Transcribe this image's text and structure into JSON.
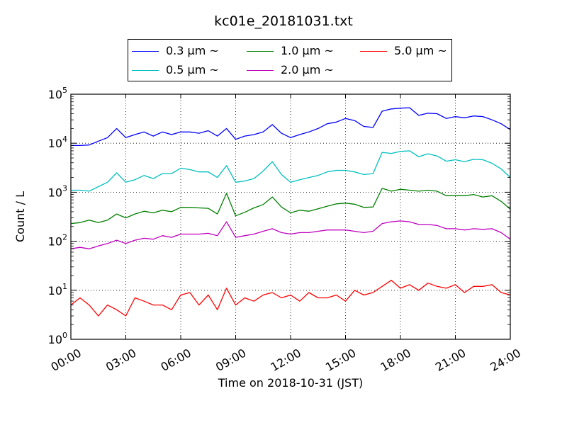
{
  "chart_data": {
    "type": "line",
    "title": "kc01e_20181031.txt",
    "xlabel": "Time on 2018-10-31 (JST)",
    "ylabel": "Count / L",
    "yscale": "log",
    "ylim": [
      1,
      100000
    ],
    "xlim": [
      "00:00",
      "24:00"
    ],
    "x_ticks": [
      "00:00",
      "03:00",
      "06:00",
      "09:00",
      "12:00",
      "15:00",
      "18:00",
      "21:00",
      "24:00"
    ],
    "y_ticks": [
      {
        "base": "10",
        "exp": "0"
      },
      {
        "base": "10",
        "exp": "1"
      },
      {
        "base": "10",
        "exp": "2"
      },
      {
        "base": "10",
        "exp": "3"
      },
      {
        "base": "10",
        "exp": "4"
      },
      {
        "base": "10",
        "exp": "5"
      }
    ],
    "grid": true,
    "legend_position": "top-center",
    "x": [
      "00:00",
      "00:30",
      "01:00",
      "01:30",
      "02:00",
      "02:30",
      "03:00",
      "03:30",
      "04:00",
      "04:30",
      "05:00",
      "05:30",
      "06:00",
      "06:30",
      "07:00",
      "07:30",
      "08:00",
      "08:30",
      "09:00",
      "09:30",
      "10:00",
      "10:30",
      "11:00",
      "11:30",
      "12:00",
      "12:30",
      "13:00",
      "13:30",
      "14:00",
      "14:30",
      "15:00",
      "15:30",
      "16:00",
      "16:30",
      "17:00",
      "17:30",
      "18:00",
      "18:30",
      "19:00",
      "19:30",
      "20:00",
      "20:30",
      "21:00",
      "21:30",
      "22:00",
      "22:30",
      "23:00",
      "23:30",
      "24:00"
    ],
    "series": [
      {
        "name": "0.3 μm ~",
        "color": "#0000ff",
        "values": [
          9000,
          9000,
          9200,
          11000,
          13000,
          20000,
          13000,
          15000,
          17000,
          14000,
          17000,
          15000,
          17000,
          17000,
          16000,
          18000,
          14000,
          20000,
          12000,
          14000,
          15000,
          17000,
          24000,
          16000,
          13000,
          15000,
          17000,
          20000,
          25000,
          27000,
          32000,
          29000,
          22000,
          21000,
          45000,
          50000,
          52000,
          53000,
          37000,
          41000,
          40000,
          32000,
          35000,
          33000,
          36000,
          35000,
          30000,
          25000,
          19000
        ]
      },
      {
        "name": "1.0 μm ~",
        "color": "#008000",
        "values": [
          230,
          240,
          270,
          240,
          270,
          360,
          300,
          360,
          410,
          380,
          430,
          400,
          490,
          490,
          480,
          470,
          360,
          950,
          330,
          390,
          480,
          560,
          800,
          500,
          380,
          430,
          410,
          460,
          520,
          580,
          600,
          570,
          490,
          500,
          1200,
          1050,
          1150,
          1100,
          1050,
          1100,
          1050,
          850,
          850,
          850,
          900,
          800,
          850,
          650,
          450
        ]
      },
      {
        "name": "5.0 μm ~",
        "color": "#ff0000",
        "values": [
          5,
          7,
          5,
          3,
          5,
          4,
          3,
          7,
          6,
          5,
          5,
          4,
          8,
          9,
          5,
          8,
          4,
          11,
          5,
          7,
          6,
          8,
          9,
          7,
          8,
          6,
          9,
          7,
          7,
          8,
          6,
          10,
          8,
          9,
          12,
          16,
          11,
          13,
          10,
          14,
          12,
          11,
          13,
          9,
          12,
          12,
          13,
          9,
          8
        ]
      },
      {
        "name": "0.5 μm ~",
        "color": "#00bfbf",
        "values": [
          1100,
          1100,
          1050,
          1300,
          1600,
          2500,
          1600,
          1800,
          2200,
          1900,
          2400,
          2400,
          3100,
          2900,
          2600,
          2600,
          2000,
          3500,
          1600,
          1700,
          1900,
          2700,
          4200,
          2300,
          1600,
          1800,
          2000,
          2200,
          2600,
          2800,
          2800,
          2600,
          2300,
          2400,
          6500,
          6200,
          6800,
          7000,
          5300,
          6100,
          5500,
          4300,
          4600,
          4200,
          4700,
          4600,
          3900,
          3000,
          2000
        ]
      },
      {
        "name": "2.0 μm ~",
        "color": "#bf00bf",
        "values": [
          70,
          75,
          70,
          80,
          90,
          105,
          90,
          105,
          115,
          110,
          130,
          120,
          140,
          140,
          140,
          145,
          130,
          250,
          120,
          130,
          140,
          160,
          180,
          150,
          140,
          150,
          150,
          160,
          170,
          170,
          170,
          160,
          150,
          160,
          230,
          250,
          260,
          250,
          220,
          220,
          210,
          180,
          180,
          170,
          180,
          175,
          180,
          150,
          110
        ]
      }
    ]
  }
}
